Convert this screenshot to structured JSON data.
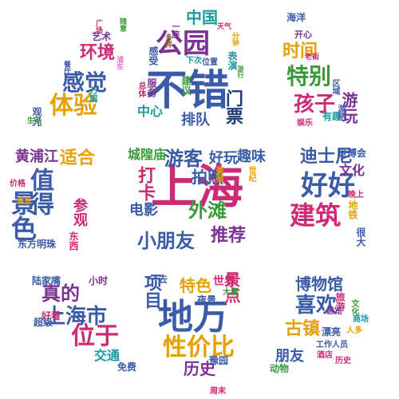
{
  "palette": {
    "purple": "#7b3294",
    "blue": "#3a5ba8",
    "magenta": "#cc2a73",
    "teal": "#1b9aa0",
    "orange": "#e6a000",
    "green": "#3a9a3a",
    "brown": "#8a5a2b",
    "red": "#d62728",
    "pink": "#e377c2",
    "navy": "#1f3b73"
  },
  "words": [
    {
      "text": "不错",
      "color": "#3a5ba8"
    },
    {
      "text": "公园",
      "color": "#7b3294"
    },
    {
      "text": "中国",
      "color": "#1b9aa0"
    },
    {
      "text": "排队",
      "color": "#3a5ba8"
    },
    {
      "text": "门票",
      "color": "#1f3b73"
    },
    {
      "text": "中心",
      "color": "#1b9aa0"
    },
    {
      "text": "服务",
      "color": "#7b3294"
    },
    {
      "text": "建议",
      "color": "#3a9a3a"
    },
    {
      "text": "位置",
      "color": "#3a5ba8"
    },
    {
      "text": "表演",
      "color": "#1b9aa0"
    },
    {
      "text": "一座",
      "color": "#7b3294"
    },
    {
      "text": "天气",
      "color": "#cc2a73"
    },
    {
      "text": "感受",
      "color": "#3a5ba8"
    },
    {
      "text": "总体",
      "color": "#cc2a73"
    },
    {
      "text": "下次",
      "color": "#1b9aa0"
    },
    {
      "text": "多样",
      "color": "#8a5a2b"
    },
    {
      "text": "分钟",
      "color": "#e6a000"
    },
    {
      "text": "游行",
      "color": "#3a9a3a"
    },
    {
      "text": "环境",
      "color": "#cc2a73"
    },
    {
      "text": "感觉",
      "color": "#3a5ba8"
    },
    {
      "text": "体验",
      "color": "#e6a000"
    },
    {
      "text": "艺术",
      "color": "#7b3294"
    },
    {
      "text": "广场",
      "color": "#cc2a73"
    },
    {
      "text": "随意",
      "color": "#3a9a3a"
    },
    {
      "text": "餐厅",
      "color": "#3a5ba8"
    },
    {
      "text": "万国",
      "color": "#1b9aa0"
    },
    {
      "text": "观光",
      "color": "#3a5ba8"
    },
    {
      "text": "生活",
      "color": "#3a9a3a"
    },
    {
      "text": "浦东",
      "color": "#e377c2"
    },
    {
      "text": "特别",
      "color": "#3a9a3a"
    },
    {
      "text": "时间",
      "color": "#e6a000"
    },
    {
      "text": "海洋",
      "color": "#3a5ba8"
    },
    {
      "text": "开心",
      "color": "#7b3294"
    },
    {
      "text": "老街",
      "color": "#cc2a73"
    },
    {
      "text": "区域",
      "color": "#3a5ba8"
    },
    {
      "text": "孩子",
      "color": "#cc2a73"
    },
    {
      "text": "游玩",
      "color": "#7b3294"
    },
    {
      "text": "有趣",
      "color": "#1b9aa0"
    },
    {
      "text": "娱乐",
      "color": "#cc2a73"
    },
    {
      "text": "游乐",
      "color": "#3a5ba8"
    },
    {
      "text": "上海",
      "color": "#cc2a73"
    },
    {
      "text": "游客",
      "color": "#3a5ba8"
    },
    {
      "text": "城隍庙",
      "color": "#3a9a3a"
    },
    {
      "text": "好玩",
      "color": "#3a5ba8"
    },
    {
      "text": "趣味",
      "color": "#3a5ba8"
    },
    {
      "text": "拍照",
      "color": "#3a5ba8"
    },
    {
      "text": "外滩",
      "color": "#3a9a3a"
    },
    {
      "text": "打卡",
      "color": "#cc2a73"
    },
    {
      "text": "电影",
      "color": "#3a5ba8"
    },
    {
      "text": "小朋友",
      "color": "#3a5ba8"
    },
    {
      "text": "推荐",
      "color": "#7b3294"
    },
    {
      "text": "美丽",
      "color": "#e6a000"
    },
    {
      "text": "世纪",
      "color": "#e6a000"
    },
    {
      "text": "迪士尼",
      "color": "#3a5ba8"
    },
    {
      "text": "好好",
      "color": "#3a5ba8"
    },
    {
      "text": "建筑",
      "color": "#cc2a73"
    },
    {
      "text": "文化",
      "color": "#7b3294"
    },
    {
      "text": "世博会",
      "color": "#3a5ba8"
    },
    {
      "text": "晚上",
      "color": "#cc2a73"
    },
    {
      "text": "地铁",
      "color": "#e6a000"
    },
    {
      "text": "很大",
      "color": "#3a5ba8"
    },
    {
      "text": "黄浦江",
      "color": "#7b3294"
    },
    {
      "text": "适合",
      "color": "#e6a000"
    },
    {
      "text": "景色",
      "color": "#3a5ba8"
    },
    {
      "text": "值得",
      "color": "#3a5ba8"
    },
    {
      "text": "参观",
      "color": "#cc2a73"
    },
    {
      "text": "东方明珠",
      "color": "#3a5ba8"
    },
    {
      "text": "东西",
      "color": "#cc2a73"
    },
    {
      "text": "浦东",
      "color": "#e6a000"
    },
    {
      "text": "价格",
      "color": "#cc2a73"
    },
    {
      "text": "地万",
      "color": "#3a5ba8"
    },
    {
      "text": "性价比",
      "color": "#e6a000"
    },
    {
      "text": "项目",
      "color": "#3a5ba8"
    },
    {
      "text": "特色",
      "color": "#e6a000"
    },
    {
      "text": "景点",
      "color": "#cc2a73"
    },
    {
      "text": "历史",
      "color": "#7b3294"
    },
    {
      "text": "世界",
      "color": "#cc2a73"
    },
    {
      "text": "一去",
      "color": "#3a5ba8"
    },
    {
      "text": "夜景",
      "color": "#3a5ba8"
    },
    {
      "text": "大厦",
      "color": "#3a9a3a"
    },
    {
      "text": "豫园",
      "color": "#3a5ba8"
    },
    {
      "text": "周末",
      "color": "#cc2a73"
    },
    {
      "text": "上海市",
      "color": "#3a5ba8"
    },
    {
      "text": "位于",
      "color": "#cc2a73"
    },
    {
      "text": "真的",
      "color": "#7b3294"
    },
    {
      "text": "交通",
      "color": "#1b9aa0"
    },
    {
      "text": "陆家嘴",
      "color": "#3a5ba8"
    },
    {
      "text": "小时",
      "color": "#7b3294"
    },
    {
      "text": "好看",
      "color": "#cc2a73"
    },
    {
      "text": "超级",
      "color": "#3a5ba8"
    },
    {
      "text": "免费",
      "color": "#3a5ba8"
    },
    {
      "text": "博物馆",
      "color": "#3a5ba8"
    },
    {
      "text": "喜欢",
      "color": "#3a5ba8"
    },
    {
      "text": "古镇",
      "color": "#e6a000"
    },
    {
      "text": "朋友",
      "color": "#3a5ba8"
    },
    {
      "text": "旅游",
      "color": "#cc2a73"
    },
    {
      "text": "游览",
      "color": "#7b3294"
    },
    {
      "text": "动物",
      "color": "#3a9a3a"
    },
    {
      "text": "漂亮",
      "color": "#3a5ba8"
    },
    {
      "text": "工作人员",
      "color": "#3a5ba8"
    },
    {
      "text": "酒店",
      "color": "#cc2a73"
    },
    {
      "text": "商场",
      "color": "#1b9aa0"
    },
    {
      "text": "人多",
      "color": "#e6a000"
    },
    {
      "text": "文化",
      "color": "#3a9a3a"
    },
    {
      "text": "历史",
      "color": "#cc2a73"
    }
  ]
}
